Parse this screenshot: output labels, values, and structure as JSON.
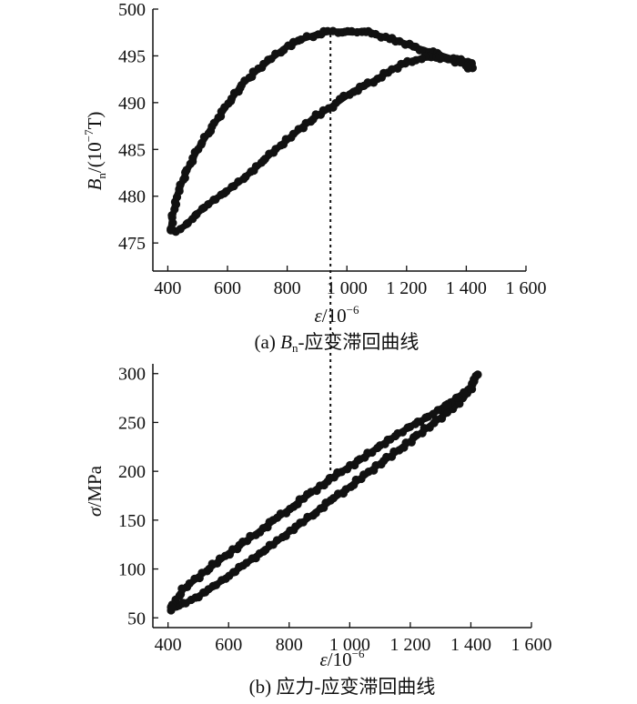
{
  "chart_data": [
    {
      "type": "line",
      "panel": "a",
      "caption": {
        "label": "(a) ",
        "var": "B",
        "sub": "n",
        "text": "-应变滞回曲线"
      },
      "xlabel": {
        "var": "ε",
        "unit": "/10",
        "exp": "−6"
      },
      "ylabel": {
        "var": "B",
        "sub": "n",
        "unit": "/(10",
        "exp": "−7",
        "tail": "T)"
      },
      "xlim": [
        350,
        1600
      ],
      "ylim": [
        472,
        500
      ],
      "xticks": [
        400,
        600,
        800,
        1000,
        1200,
        1400,
        1600
      ],
      "xtick_labels": [
        "400",
        "600",
        "800",
        "1 000",
        "1 200",
        "1 400",
        "1 600"
      ],
      "yticks": [
        475,
        480,
        485,
        490,
        495,
        500
      ],
      "ytick_labels": [
        "475",
        "480",
        "485",
        "490",
        "495",
        "500"
      ],
      "series": [
        {
          "marker": "filled-circle",
          "color": "#111111",
          "x": [
            410,
            415,
            430,
            460,
            500,
            550,
            600,
            650,
            700,
            750,
            800,
            850,
            900,
            940,
            980,
            1020,
            1060,
            1100,
            1140,
            1180,
            1220,
            1260,
            1300,
            1340,
            1380,
            1420,
            1420,
            1400,
            1380,
            1340,
            1300,
            1260,
            1220,
            1180,
            1140,
            1100,
            1060,
            1020,
            980,
            950,
            900,
            850,
            800,
            750,
            700,
            650,
            600,
            550,
            500,
            460,
            430,
            415,
            410
          ],
          "y": [
            476.5,
            477.6,
            480.0,
            482.5,
            485.0,
            487.5,
            489.8,
            492.0,
            493.5,
            494.8,
            496.0,
            496.8,
            497.3,
            497.6,
            497.6,
            497.5,
            497.7,
            497.2,
            496.9,
            496.5,
            496.0,
            495.6,
            495.2,
            494.8,
            494.5,
            494.3,
            493.6,
            494.0,
            494.3,
            494.6,
            494.9,
            494.8,
            494.5,
            494.0,
            493.3,
            492.5,
            491.8,
            491.2,
            490.3,
            489.6,
            488.6,
            487.4,
            486.0,
            484.7,
            483.2,
            481.8,
            480.6,
            479.5,
            478.2,
            476.9,
            476.3,
            476.3,
            476.5
          ]
        }
      ],
      "reference_line": {
        "x": 945,
        "style": "dotted"
      }
    },
    {
      "type": "line",
      "panel": "b",
      "caption": {
        "label": "(b) ",
        "text": "应力-应变滞回曲线"
      },
      "xlabel": {
        "var": "ε",
        "unit": "/10",
        "exp": "−6"
      },
      "ylabel": {
        "var": "σ",
        "unit": "/MPa"
      },
      "xlim": [
        350,
        1600
      ],
      "ylim": [
        40,
        310
      ],
      "xticks": [
        400,
        600,
        800,
        1000,
        1200,
        1400,
        1600
      ],
      "xtick_labels": [
        "400",
        "600",
        "800",
        "1 000",
        "1 200",
        "1 400",
        "1 600"
      ],
      "yticks": [
        50,
        100,
        150,
        200,
        250,
        300
      ],
      "ytick_labels": [
        "50",
        "100",
        "150",
        "200",
        "250",
        "300"
      ],
      "series": [
        {
          "marker": "filled-circle",
          "color": "#111111",
          "x": [
            410,
            450,
            500,
            550,
            600,
            650,
            700,
            750,
            800,
            850,
            900,
            950,
            1000,
            1050,
            1100,
            1150,
            1200,
            1250,
            1300,
            1350,
            1400,
            1420,
            1420,
            1400,
            1350,
            1300,
            1250,
            1200,
            1150,
            1100,
            1050,
            1000,
            950,
            900,
            850,
            800,
            750,
            700,
            650,
            600,
            550,
            500,
            450,
            410
          ],
          "y": [
            59,
            64,
            72,
            82,
            93,
            104,
            115,
            126,
            138,
            149,
            161,
            173,
            184,
            196,
            208,
            219,
            231,
            243,
            255,
            267,
            284,
            298,
            298,
            286,
            274,
            264,
            254,
            246,
            236,
            226,
            215,
            205,
            195,
            184,
            173,
            161,
            150,
            138,
            127,
            116,
            104,
            92,
            79,
            61
          ]
        }
      ],
      "reference_line": {
        "x": 945,
        "style": "dotted"
      }
    }
  ]
}
